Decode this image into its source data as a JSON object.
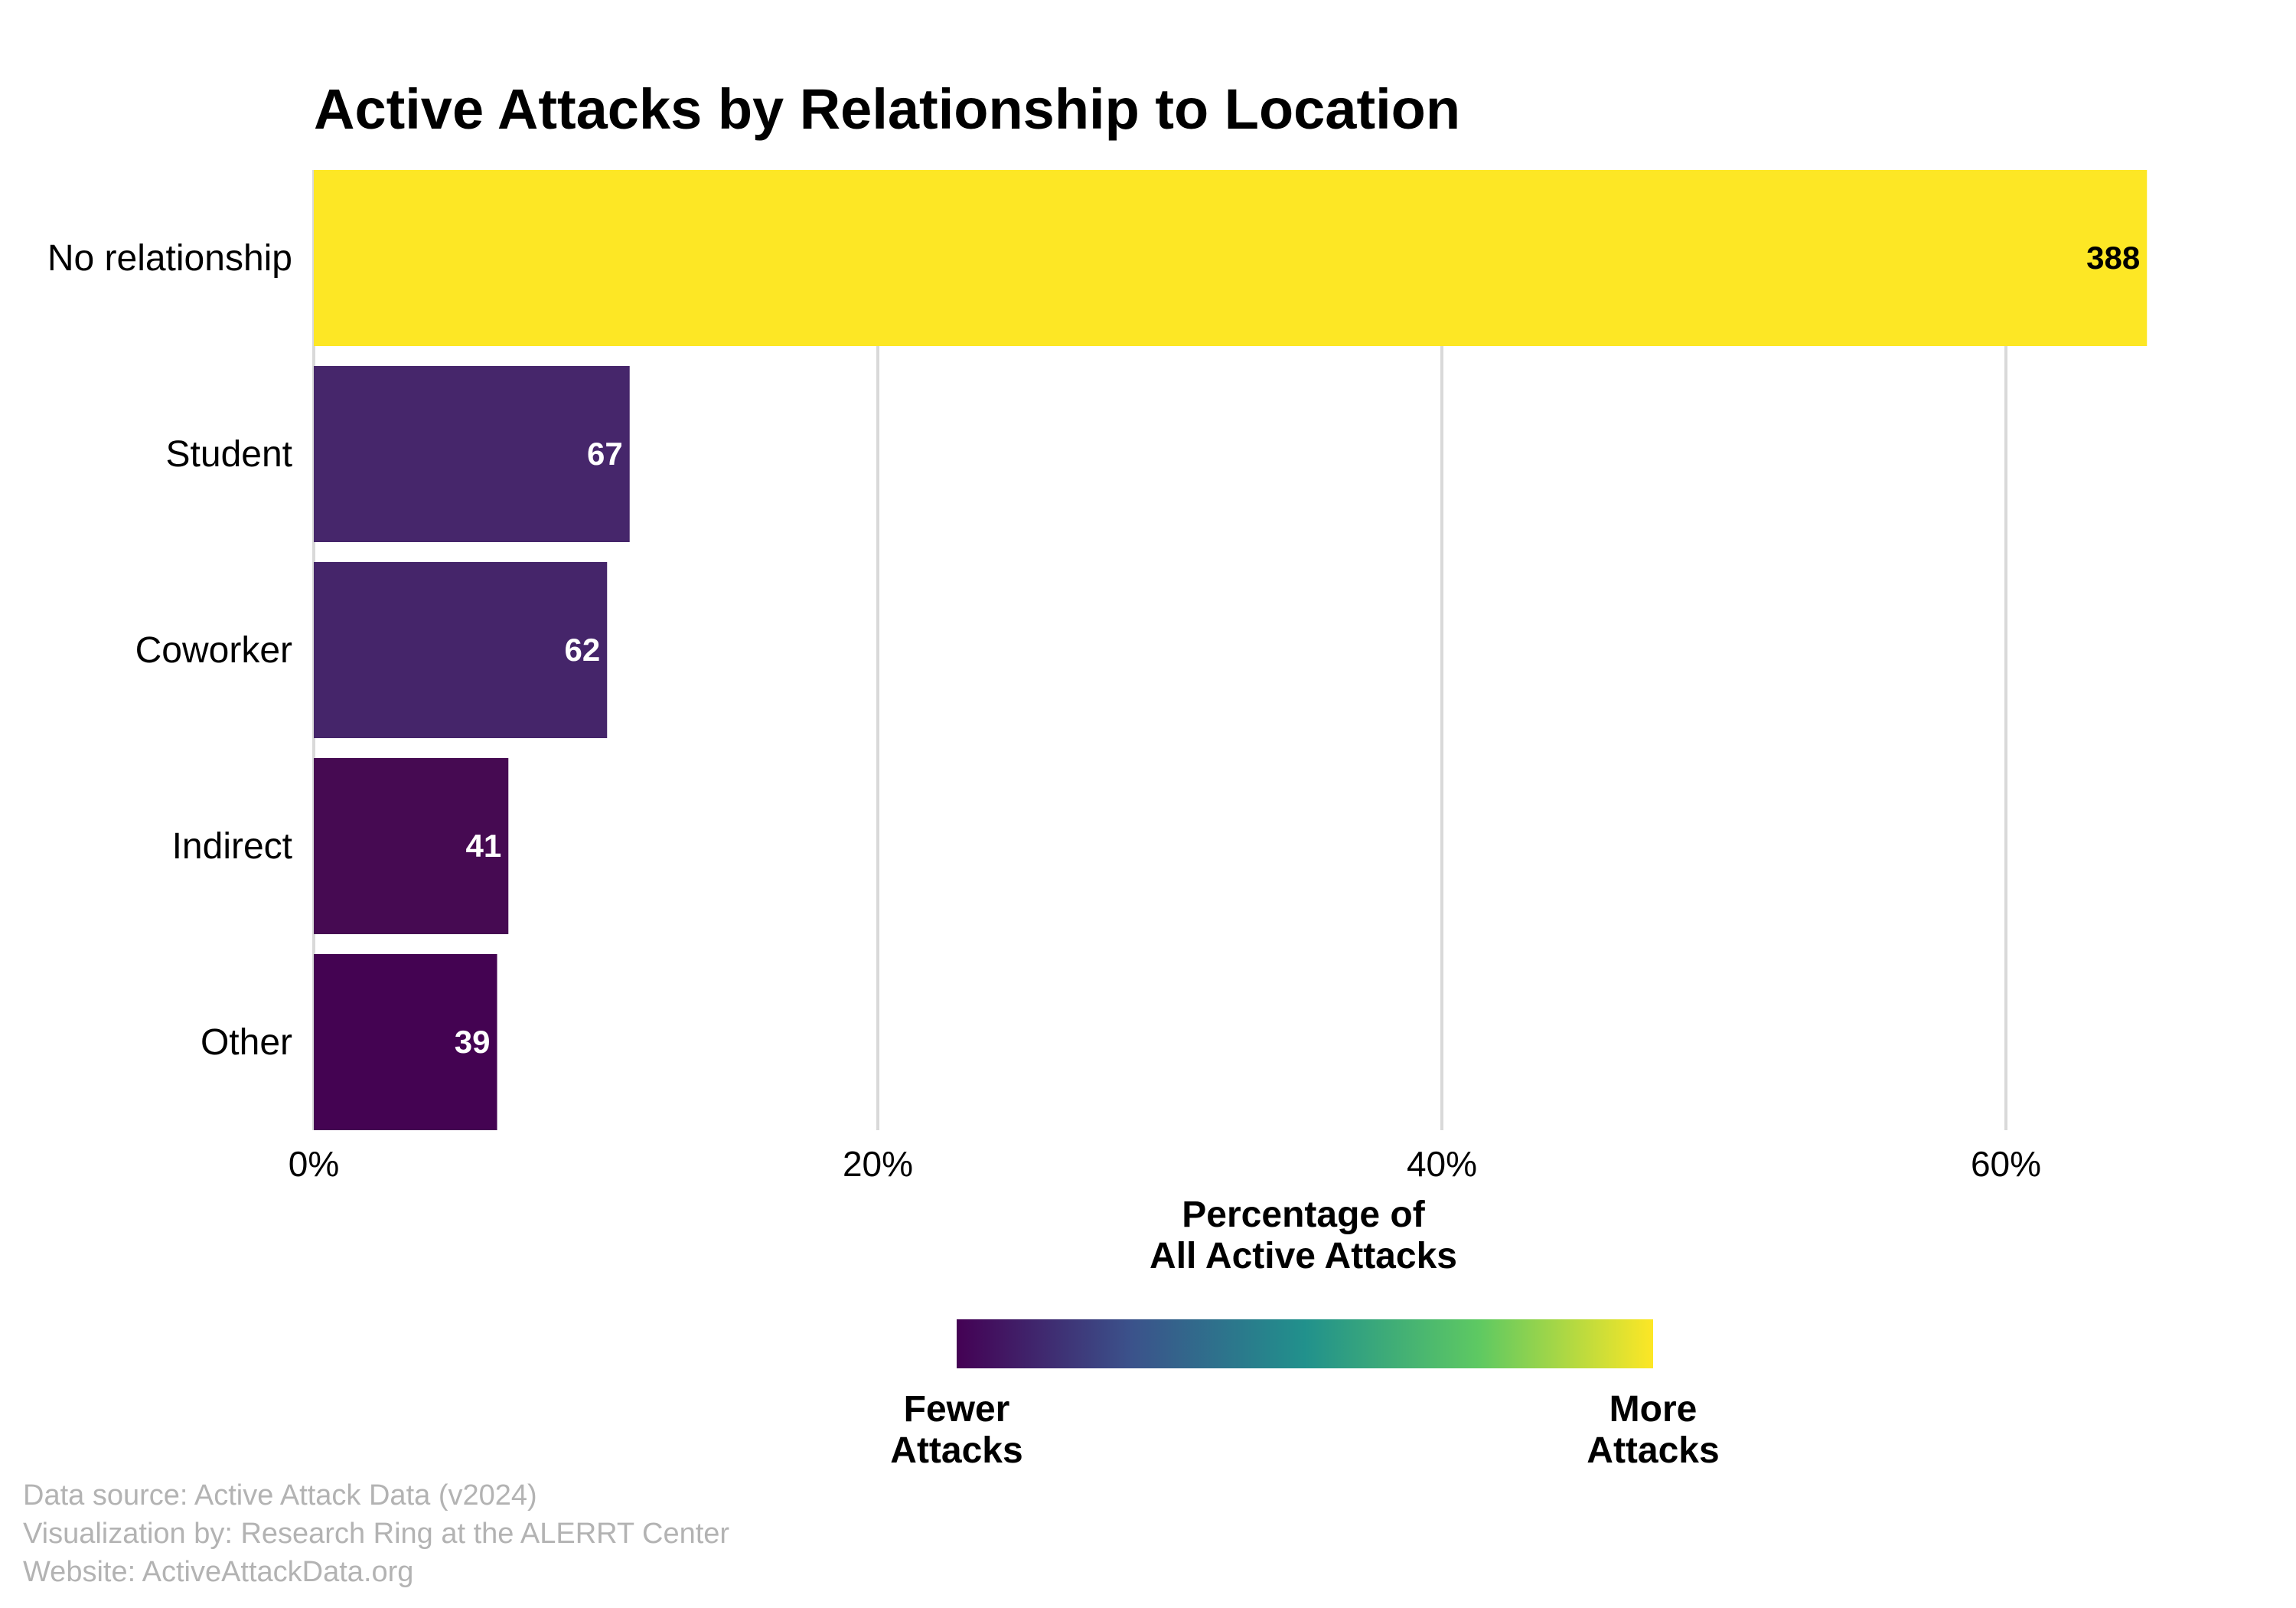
{
  "chart_data": {
    "type": "bar",
    "orientation": "horizontal",
    "title": "Active Attacks by Relationship to Location",
    "xlabel": "Percentage of\nAll Active Attacks",
    "ylabel": "",
    "categories": [
      "No relationship",
      "Student",
      "Coworker",
      "Indirect",
      "Other"
    ],
    "values": [
      388,
      67,
      62,
      41,
      39
    ],
    "percent_values": [
      65.0,
      11.2,
      10.4,
      6.9,
      6.5
    ],
    "data_labels": [
      "388",
      "67",
      "62",
      "41",
      "39"
    ],
    "xlim": [
      0,
      65
    ],
    "x_ticks": [
      0,
      20,
      40,
      60
    ],
    "x_tick_labels": [
      "0%",
      "20%",
      "40%",
      "60%"
    ],
    "grid": "vertical",
    "color_scale": "viridis",
    "colors": [
      "#fde725",
      "#46266b",
      "#45256a",
      "#460a52",
      "#440352"
    ],
    "label_colors": [
      "#000000",
      "#ffffff",
      "#ffffff",
      "#ffffff",
      "#ffffff"
    ],
    "legend": {
      "type": "colorbar",
      "placement": "bottom",
      "low_label": "Fewer\nAttacks",
      "high_label": "More\nAttacks",
      "gradient": [
        "#440154",
        "#3b528b",
        "#21918c",
        "#5ec962",
        "#fde725"
      ]
    }
  },
  "credits": {
    "source": "Data source: Active Attack Data (v2024)",
    "visualization": "Visualization by: Research Ring at the ALERRT Center",
    "website": "Website: ActiveAttackData.org"
  }
}
